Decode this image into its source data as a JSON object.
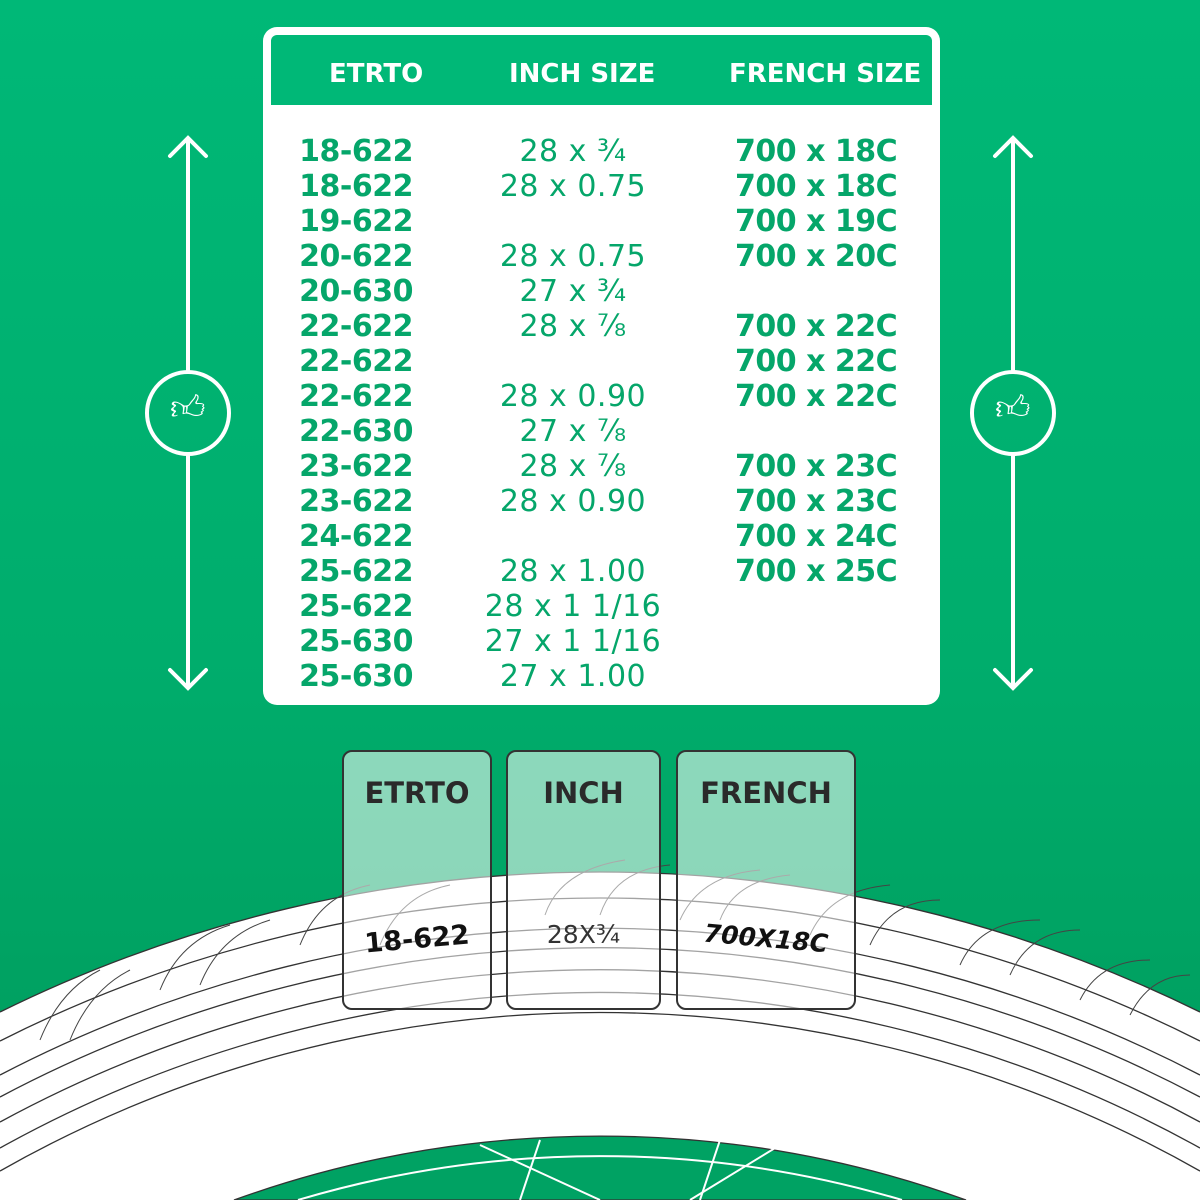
{
  "colors": {
    "background": "#00b877",
    "text_green": "#05a66a",
    "card_border": "#333333"
  },
  "table": {
    "headers": [
      "ETRTO",
      "INCH SIZE",
      "FRENCH SIZE"
    ],
    "rows": [
      [
        "18-622",
        "28 x ¾",
        "700 x 18C"
      ],
      [
        "18-622",
        "28 x 0.75",
        "700 x 18C"
      ],
      [
        "19-622",
        "",
        "700 x 19C"
      ],
      [
        "20-622",
        "28 x 0.75",
        "700 x 20C"
      ],
      [
        "20-630",
        "27 x ¾",
        ""
      ],
      [
        "22-622",
        "28 x ⅞",
        "700 x 22C"
      ],
      [
        "22-622",
        "",
        "700 x 22C"
      ],
      [
        "22-622",
        "28 x 0.90",
        "700 x 22C"
      ],
      [
        "22-630",
        "27 x ⅞",
        ""
      ],
      [
        "23-622",
        "28 x ⅞",
        "700 x 23C"
      ],
      [
        "23-622",
        "28 x 0.90",
        "700 x 23C"
      ],
      [
        "24-622",
        "",
        "700 x 24C"
      ],
      [
        "25-622",
        "28 x 1.00",
        "700 x 25C"
      ],
      [
        "25-622",
        "28 x 1 1/16",
        ""
      ],
      [
        "25-630",
        "27 x 1 1/16",
        ""
      ],
      [
        "25-630",
        "27 x 1.00",
        ""
      ]
    ]
  },
  "side_icons": {
    "left": "thumbs-up-icon",
    "right": "thumbs-up-icon"
  },
  "cards": [
    {
      "title": "ETRTO",
      "value": "18-622"
    },
    {
      "title": "INCH",
      "value": "28X¾"
    },
    {
      "title": "FRENCH",
      "value": "700X18C"
    }
  ]
}
